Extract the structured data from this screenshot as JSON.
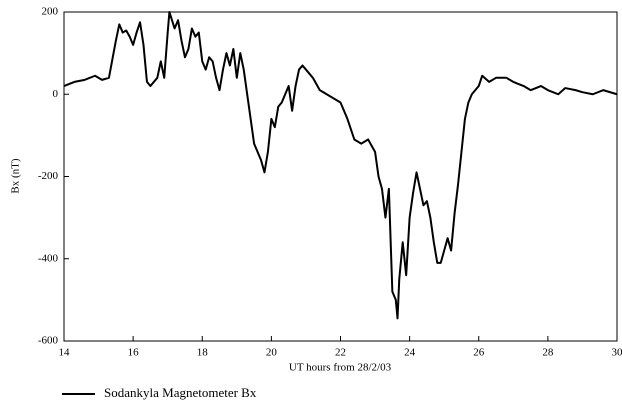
{
  "chart_data": {
    "type": "line",
    "xlabel": "UT hours from 28/2/03",
    "ylabel": "Bx (nT)",
    "xlim": [
      14,
      30
    ],
    "xticks": [
      14,
      16,
      18,
      20,
      22,
      24,
      26,
      28,
      30
    ],
    "ylim": [
      -600,
      200
    ],
    "yticks": [
      -600,
      -400,
      -200,
      0,
      200
    ],
    "grid": false,
    "legend": "bottom-left",
    "series": [
      {
        "name": "Sodankyla Magnetometer Bx",
        "color": "#000000",
        "x": [
          14.0,
          14.3,
          14.6,
          14.9,
          15.1,
          15.3,
          15.5,
          15.6,
          15.7,
          15.8,
          15.9,
          16.0,
          16.1,
          16.2,
          16.3,
          16.4,
          16.5,
          16.7,
          16.8,
          16.9,
          17.0,
          17.05,
          17.2,
          17.3,
          17.4,
          17.5,
          17.6,
          17.7,
          17.8,
          17.9,
          18.0,
          18.1,
          18.2,
          18.3,
          18.4,
          18.5,
          18.6,
          18.7,
          18.8,
          18.9,
          19.0,
          19.1,
          19.2,
          19.3,
          19.4,
          19.5,
          19.6,
          19.7,
          19.8,
          19.9,
          20.0,
          20.1,
          20.2,
          20.3,
          20.5,
          20.6,
          20.7,
          20.8,
          20.9,
          21.0,
          21.2,
          21.4,
          21.6,
          21.8,
          22.0,
          22.2,
          22.4,
          22.6,
          22.8,
          23.0,
          23.1,
          23.2,
          23.3,
          23.4,
          23.5,
          23.6,
          23.65,
          23.7,
          23.8,
          23.9,
          24.0,
          24.1,
          24.2,
          24.3,
          24.4,
          24.5,
          24.6,
          24.7,
          24.8,
          24.9,
          25.0,
          25.1,
          25.2,
          25.3,
          25.4,
          25.5,
          25.6,
          25.7,
          25.8,
          25.9,
          26.0,
          26.1,
          26.3,
          26.5,
          26.8,
          27.0,
          27.3,
          27.5,
          27.8,
          28.0,
          28.3,
          28.5,
          28.8,
          29.0,
          29.3,
          29.6,
          30.0
        ],
        "values": [
          20,
          30,
          35,
          45,
          35,
          40,
          130,
          170,
          150,
          155,
          140,
          120,
          150,
          175,
          120,
          30,
          20,
          40,
          80,
          40,
          150,
          200,
          160,
          180,
          130,
          90,
          110,
          160,
          140,
          150,
          80,
          60,
          90,
          80,
          40,
          10,
          60,
          100,
          70,
          110,
          40,
          100,
          60,
          0,
          -60,
          -120,
          -140,
          -160,
          -190,
          -140,
          -60,
          -80,
          -30,
          -20,
          20,
          -40,
          20,
          60,
          70,
          60,
          40,
          10,
          0,
          -10,
          -20,
          -60,
          -110,
          -120,
          -110,
          -140,
          -200,
          -230,
          -300,
          -230,
          -480,
          -500,
          -545,
          -450,
          -360,
          -440,
          -300,
          -240,
          -190,
          -230,
          -270,
          -260,
          -300,
          -360,
          -410,
          -410,
          -380,
          -350,
          -380,
          -290,
          -220,
          -140,
          -60,
          -20,
          0,
          10,
          20,
          45,
          30,
          40,
          40,
          30,
          20,
          10,
          20,
          10,
          0,
          15,
          10,
          5,
          0,
          10,
          0
        ]
      }
    ]
  }
}
